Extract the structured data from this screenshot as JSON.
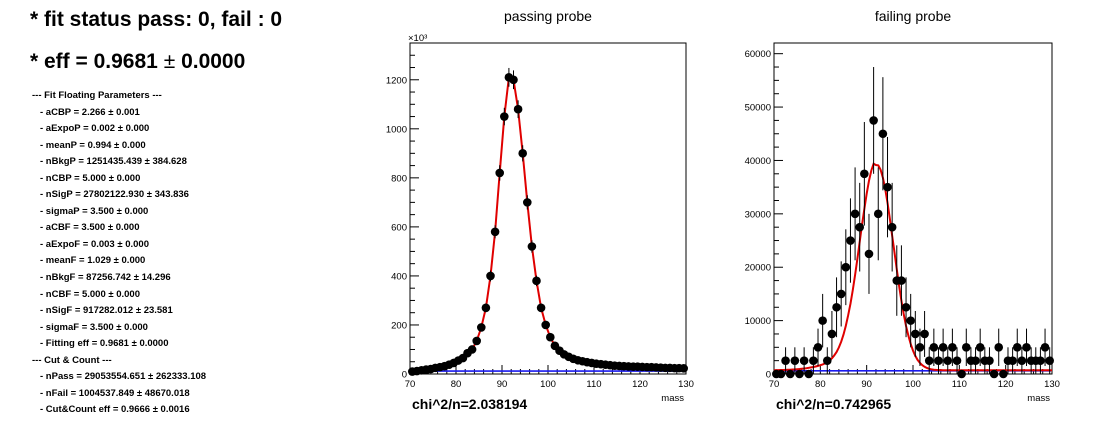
{
  "header": {
    "fit_status": "* fit status pass: 0, fail : 0",
    "eff_prefix": "* eff = 0.9681",
    "eff_pm": "±",
    "eff_err": "0.0000"
  },
  "params": [
    {
      "text": "--- Fit Floating Parameters ---",
      "sub": false
    },
    {
      "text": "- aCBP = 2.266  ± 0.001",
      "sub": true
    },
    {
      "text": "- aExpoP = 0.002  ± 0.000",
      "sub": true
    },
    {
      "text": "- meanP = 0.994  ± 0.000",
      "sub": true
    },
    {
      "text": "- nBkgP = 1251435.439  ± 384.628",
      "sub": true
    },
    {
      "text": "- nCBP = 5.000  ± 0.000",
      "sub": true
    },
    {
      "text": "- nSigP = 27802122.930  ± 343.836",
      "sub": true
    },
    {
      "text": "- sigmaP = 3.500  ± 0.000",
      "sub": true
    },
    {
      "text": "- aCBF = 3.500  ± 0.000",
      "sub": true
    },
    {
      "text": "- aExpoF = 0.003  ± 0.000",
      "sub": true
    },
    {
      "text": "- meanF = 1.029  ± 0.000",
      "sub": true
    },
    {
      "text": "- nBkgF = 87256.742  ± 14.296",
      "sub": true
    },
    {
      "text": "- nCBF = 5.000  ± 0.000",
      "sub": true
    },
    {
      "text": "- nSigF = 917282.012  ± 23.581",
      "sub": true
    },
    {
      "text": "- sigmaF = 3.500  ± 0.000",
      "sub": true
    },
    {
      "text": "- Fitting eff = 0.9681  ± 0.0000",
      "sub": true
    },
    {
      "text": "--- Cut & Count ---",
      "sub": false
    },
    {
      "text": "- nPass = 29053554.651  ± 262333.108",
      "sub": true
    },
    {
      "text": "- nFail = 1004537.849  ± 48670.018",
      "sub": true
    },
    {
      "text": "- Cut&Count eff = 0.9666  ± 0.0016",
      "sub": true
    }
  ],
  "colors": {
    "data": "#000000",
    "fit": "#e00000",
    "background": "#1a1aee",
    "axes": "#000000"
  },
  "chart_data": [
    {
      "type": "scatter",
      "title": "passing probe",
      "xlabel": "mass",
      "ylabel": "",
      "exponent_label": "×10³",
      "xlim": [
        70,
        130
      ],
      "ylim": [
        0,
        1350
      ],
      "xticks": [
        70,
        80,
        90,
        100,
        110,
        120,
        130
      ],
      "yticks": [
        0,
        200,
        400,
        600,
        800,
        1000,
        1200
      ],
      "chi2_text": "chi^2/n=2.038194",
      "background_level": 12,
      "series": [
        {
          "points": [
            [
              70.5,
              10
            ],
            [
              71.5,
              12
            ],
            [
              72.5,
              15
            ],
            [
              73.5,
              18
            ],
            [
              74.5,
              20
            ],
            [
              75.5,
              25
            ],
            [
              76.5,
              28
            ],
            [
              77.5,
              32
            ],
            [
              78.5,
              38
            ],
            [
              79.5,
              45
            ],
            [
              80.5,
              55
            ],
            [
              81.5,
              65
            ],
            [
              82.5,
              85
            ],
            [
              83.5,
              100
            ],
            [
              84.5,
              135
            ],
            [
              85.5,
              190
            ],
            [
              86.5,
              270
            ],
            [
              87.5,
              400
            ],
            [
              88.5,
              580
            ],
            [
              89.5,
              820
            ],
            [
              90.5,
              1050
            ],
            [
              91.5,
              1210
            ],
            [
              92.5,
              1200
            ],
            [
              93.5,
              1080
            ],
            [
              94.5,
              900
            ],
            [
              95.5,
              700
            ],
            [
              96.5,
              520
            ],
            [
              97.5,
              380
            ],
            [
              98.5,
              270
            ],
            [
              99.5,
              200
            ],
            [
              100.5,
              150
            ],
            [
              101.5,
              115
            ],
            [
              102.5,
              95
            ],
            [
              103.5,
              80
            ],
            [
              104.5,
              70
            ],
            [
              105.5,
              62
            ],
            [
              106.5,
              56
            ],
            [
              107.5,
              52
            ],
            [
              108.5,
              48
            ],
            [
              109.5,
              45
            ],
            [
              110.5,
              42
            ],
            [
              111.5,
              40
            ],
            [
              112.5,
              38
            ],
            [
              113.5,
              36
            ],
            [
              114.5,
              34
            ],
            [
              115.5,
              33
            ],
            [
              116.5,
              32
            ],
            [
              117.5,
              31
            ],
            [
              118.5,
              30
            ],
            [
              119.5,
              30
            ],
            [
              120.5,
              29
            ],
            [
              121.5,
              28
            ],
            [
              122.5,
              28
            ],
            [
              123.5,
              27
            ],
            [
              124.5,
              26
            ],
            [
              125.5,
              25
            ],
            [
              126.5,
              25
            ],
            [
              127.5,
              24
            ],
            [
              128.5,
              24
            ],
            [
              129.5,
              23
            ]
          ]
        }
      ]
    },
    {
      "type": "scatter",
      "title": "failing probe",
      "xlabel": "mass",
      "ylabel": "",
      "xlim": [
        70,
        130
      ],
      "ylim": [
        0,
        62000
      ],
      "xticks": [
        70,
        80,
        90,
        100,
        110,
        120,
        130
      ],
      "yticks": [
        0,
        10000,
        20000,
        30000,
        40000,
        50000,
        60000
      ],
      "chi2_text": "chi^2/n=0.742965",
      "background_level": 600,
      "series": [
        {
          "points": [
            [
              70.5,
              0,
              0
            ],
            [
              71.5,
              0,
              0
            ],
            [
              72.5,
              2500,
              2500
            ],
            [
              73.5,
              0,
              0
            ],
            [
              74.5,
              2500,
              2500
            ],
            [
              75.5,
              0,
              0
            ],
            [
              76.5,
              2500,
              2500
            ],
            [
              77.5,
              0,
              0
            ],
            [
              78.5,
              2500,
              2500
            ],
            [
              79.5,
              5000,
              3500
            ],
            [
              80.5,
              10000,
              5000
            ],
            [
              81.5,
              2500,
              2500
            ],
            [
              82.5,
              7500,
              4300
            ],
            [
              83.5,
              12500,
              5600
            ],
            [
              84.5,
              15000,
              6100
            ],
            [
              85.5,
              20000,
              7100
            ],
            [
              86.5,
              25000,
              7900
            ],
            [
              87.5,
              30000,
              8700
            ],
            [
              88.5,
              27500,
              8300
            ],
            [
              89.5,
              37500,
              9700
            ],
            [
              90.5,
              22500,
              7500
            ],
            [
              91.5,
              47500,
              10000
            ],
            [
              92.5,
              30000,
              8700
            ],
            [
              93.5,
              45000,
              10600
            ],
            [
              94.5,
              35000,
              9400
            ],
            [
              95.5,
              27500,
              8300
            ],
            [
              96.5,
              17500,
              6600
            ],
            [
              97.5,
              17500,
              6600
            ],
            [
              98.5,
              12500,
              5600
            ],
            [
              99.5,
              10000,
              5000
            ],
            [
              100.5,
              7500,
              4300
            ],
            [
              101.5,
              5000,
              3500
            ],
            [
              102.5,
              7500,
              4300
            ],
            [
              103.5,
              2500,
              2500
            ],
            [
              104.5,
              5000,
              3500
            ],
            [
              105.5,
              2500,
              2500
            ],
            [
              106.5,
              5000,
              3500
            ],
            [
              107.5,
              2500,
              2500
            ],
            [
              108.5,
              5000,
              3500
            ],
            [
              109.5,
              2500,
              2500
            ],
            [
              110.5,
              0,
              0
            ],
            [
              111.5,
              5000,
              3500
            ],
            [
              112.5,
              2500,
              2500
            ],
            [
              113.5,
              2500,
              2500
            ],
            [
              114.5,
              5000,
              3500
            ],
            [
              115.5,
              2500,
              2500
            ],
            [
              116.5,
              2500,
              2500
            ],
            [
              117.5,
              0,
              0
            ],
            [
              118.5,
              5000,
              3500
            ],
            [
              119.5,
              0,
              0
            ],
            [
              120.5,
              2500,
              2500
            ],
            [
              121.5,
              2500,
              2500
            ],
            [
              122.5,
              5000,
              3500
            ],
            [
              123.5,
              2500,
              2500
            ],
            [
              124.5,
              5000,
              3500
            ],
            [
              125.5,
              2500,
              2500
            ],
            [
              126.5,
              2500,
              2500
            ],
            [
              127.5,
              2500,
              2500
            ],
            [
              128.5,
              5000,
              3500
            ],
            [
              129.5,
              2500,
              2500
            ]
          ]
        }
      ]
    }
  ]
}
